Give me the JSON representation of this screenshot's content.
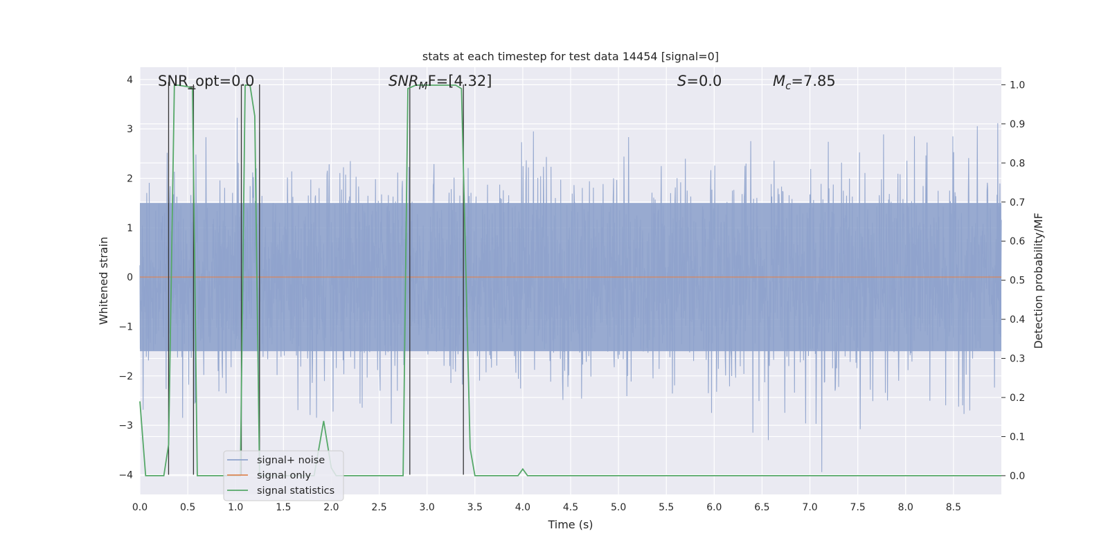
{
  "chart_data": {
    "type": "line",
    "title": "stats at each timestep for test data 14454 [signal=0]",
    "xlabel": "Time (s)",
    "ylabel_left": "Whitened strain",
    "ylabel_right": "Detection probability/MF",
    "xlim": [
      0.0,
      9.0
    ],
    "ylim_left": [
      -4.4,
      4.25
    ],
    "ylim_right": [
      -0.048,
      1.045
    ],
    "x_ticks": [
      0.0,
      0.5,
      1.0,
      1.5,
      2.0,
      2.5,
      3.0,
      3.5,
      4.0,
      4.5,
      5.0,
      5.5,
      6.0,
      6.5,
      7.0,
      7.5,
      8.0,
      8.5
    ],
    "x_tick_labels": [
      "0.0",
      "0.5",
      "1.0",
      "1.5",
      "2.0",
      "2.5",
      "3.0",
      "3.5",
      "4.0",
      "4.5",
      "5.0",
      "5.5",
      "6.0",
      "6.5",
      "7.0",
      "7.5",
      "8.0",
      "8.5"
    ],
    "y_left_ticks": [
      4,
      3,
      2,
      1,
      0,
      -1,
      -2,
      -3,
      -4
    ],
    "y_left_tick_labels": [
      "4",
      "3",
      "2",
      "1",
      "0",
      "−1",
      "−2",
      "−3",
      "−4"
    ],
    "y_right_ticks": [
      1.0,
      0.9,
      0.8,
      0.7,
      0.6,
      0.5,
      0.4,
      0.3,
      0.2,
      0.1,
      0.0
    ],
    "y_right_tick_labels": [
      "1.0",
      "0.9",
      "0.8",
      "0.7",
      "0.6",
      "0.5",
      "0.4",
      "0.3",
      "0.2",
      "0.1",
      "0.0"
    ],
    "grid": true,
    "legend_position": "lower-left",
    "annotations": {
      "snr_opt": "SNR_opt=0.0",
      "snr_mf_main": "SNR",
      "snr_mf_sub": "M",
      "snr_mf_rest": "F=[4.32]",
      "s_main": "S",
      "s_rest": "=0.0",
      "mc_main": "M",
      "mc_sub": "c",
      "mc_rest": "=7.85"
    },
    "series": [
      {
        "name": "signal+ noise",
        "color": "#8fa3cc",
        "axis": "left",
        "kind": "noise",
        "x_range": [
          0.0,
          9.0
        ],
        "envelope": [
          -4.0,
          4.0
        ],
        "core_band": [
          -1.5,
          1.5
        ]
      },
      {
        "name": "signal only",
        "color": "#dd8452",
        "axis": "left",
        "x": [
          0.0,
          9.0
        ],
        "y": [
          0.0,
          0.0
        ]
      },
      {
        "name": "signal statistics",
        "color": "#55a868",
        "axis": "right",
        "x": [
          0.0,
          0.06,
          0.1,
          0.2,
          0.25,
          0.3,
          0.36,
          0.4,
          0.5,
          0.55,
          0.6,
          0.65,
          0.7,
          1.0,
          1.05,
          1.1,
          1.15,
          1.2,
          1.25,
          1.3,
          1.82,
          1.92,
          2.0,
          2.05,
          2.75,
          2.8,
          2.88,
          3.0,
          3.3,
          3.36,
          3.45,
          3.5,
          3.95,
          4.0,
          4.05,
          9.0
        ],
        "y": [
          0.19,
          0.0,
          0.0,
          0.0,
          0.0,
          0.08,
          0.999,
          0.999,
          0.995,
          0.99,
          0.0,
          0.0,
          0.0,
          0.0,
          0.0,
          0.999,
          0.999,
          0.92,
          0.0,
          0.0,
          0.0,
          0.14,
          0.02,
          0.0,
          0.0,
          0.99,
          0.999,
          0.999,
          0.999,
          0.99,
          0.07,
          0.0,
          0.0,
          0.017,
          0.0,
          0.0
        ]
      }
    ],
    "vertical_markers": [
      {
        "x": 0.3,
        "y": [
          -4.0,
          3.95
        ]
      },
      {
        "x": 0.56,
        "y": [
          -4.0,
          3.9
        ]
      },
      {
        "x": 1.06,
        "y": [
          -4.0,
          3.9
        ]
      },
      {
        "x": 1.25,
        "y": [
          -4.0,
          3.9
        ]
      },
      {
        "x": 2.82,
        "y": [
          -4.0,
          3.9
        ]
      },
      {
        "x": 3.38,
        "y": [
          -4.0,
          3.9
        ]
      }
    ],
    "small_marker": {
      "x": 0.54,
      "y": 3.85
    }
  },
  "colors": {
    "background": "#eaeaf2",
    "grid": "#ffffff",
    "marker": "#333333"
  }
}
